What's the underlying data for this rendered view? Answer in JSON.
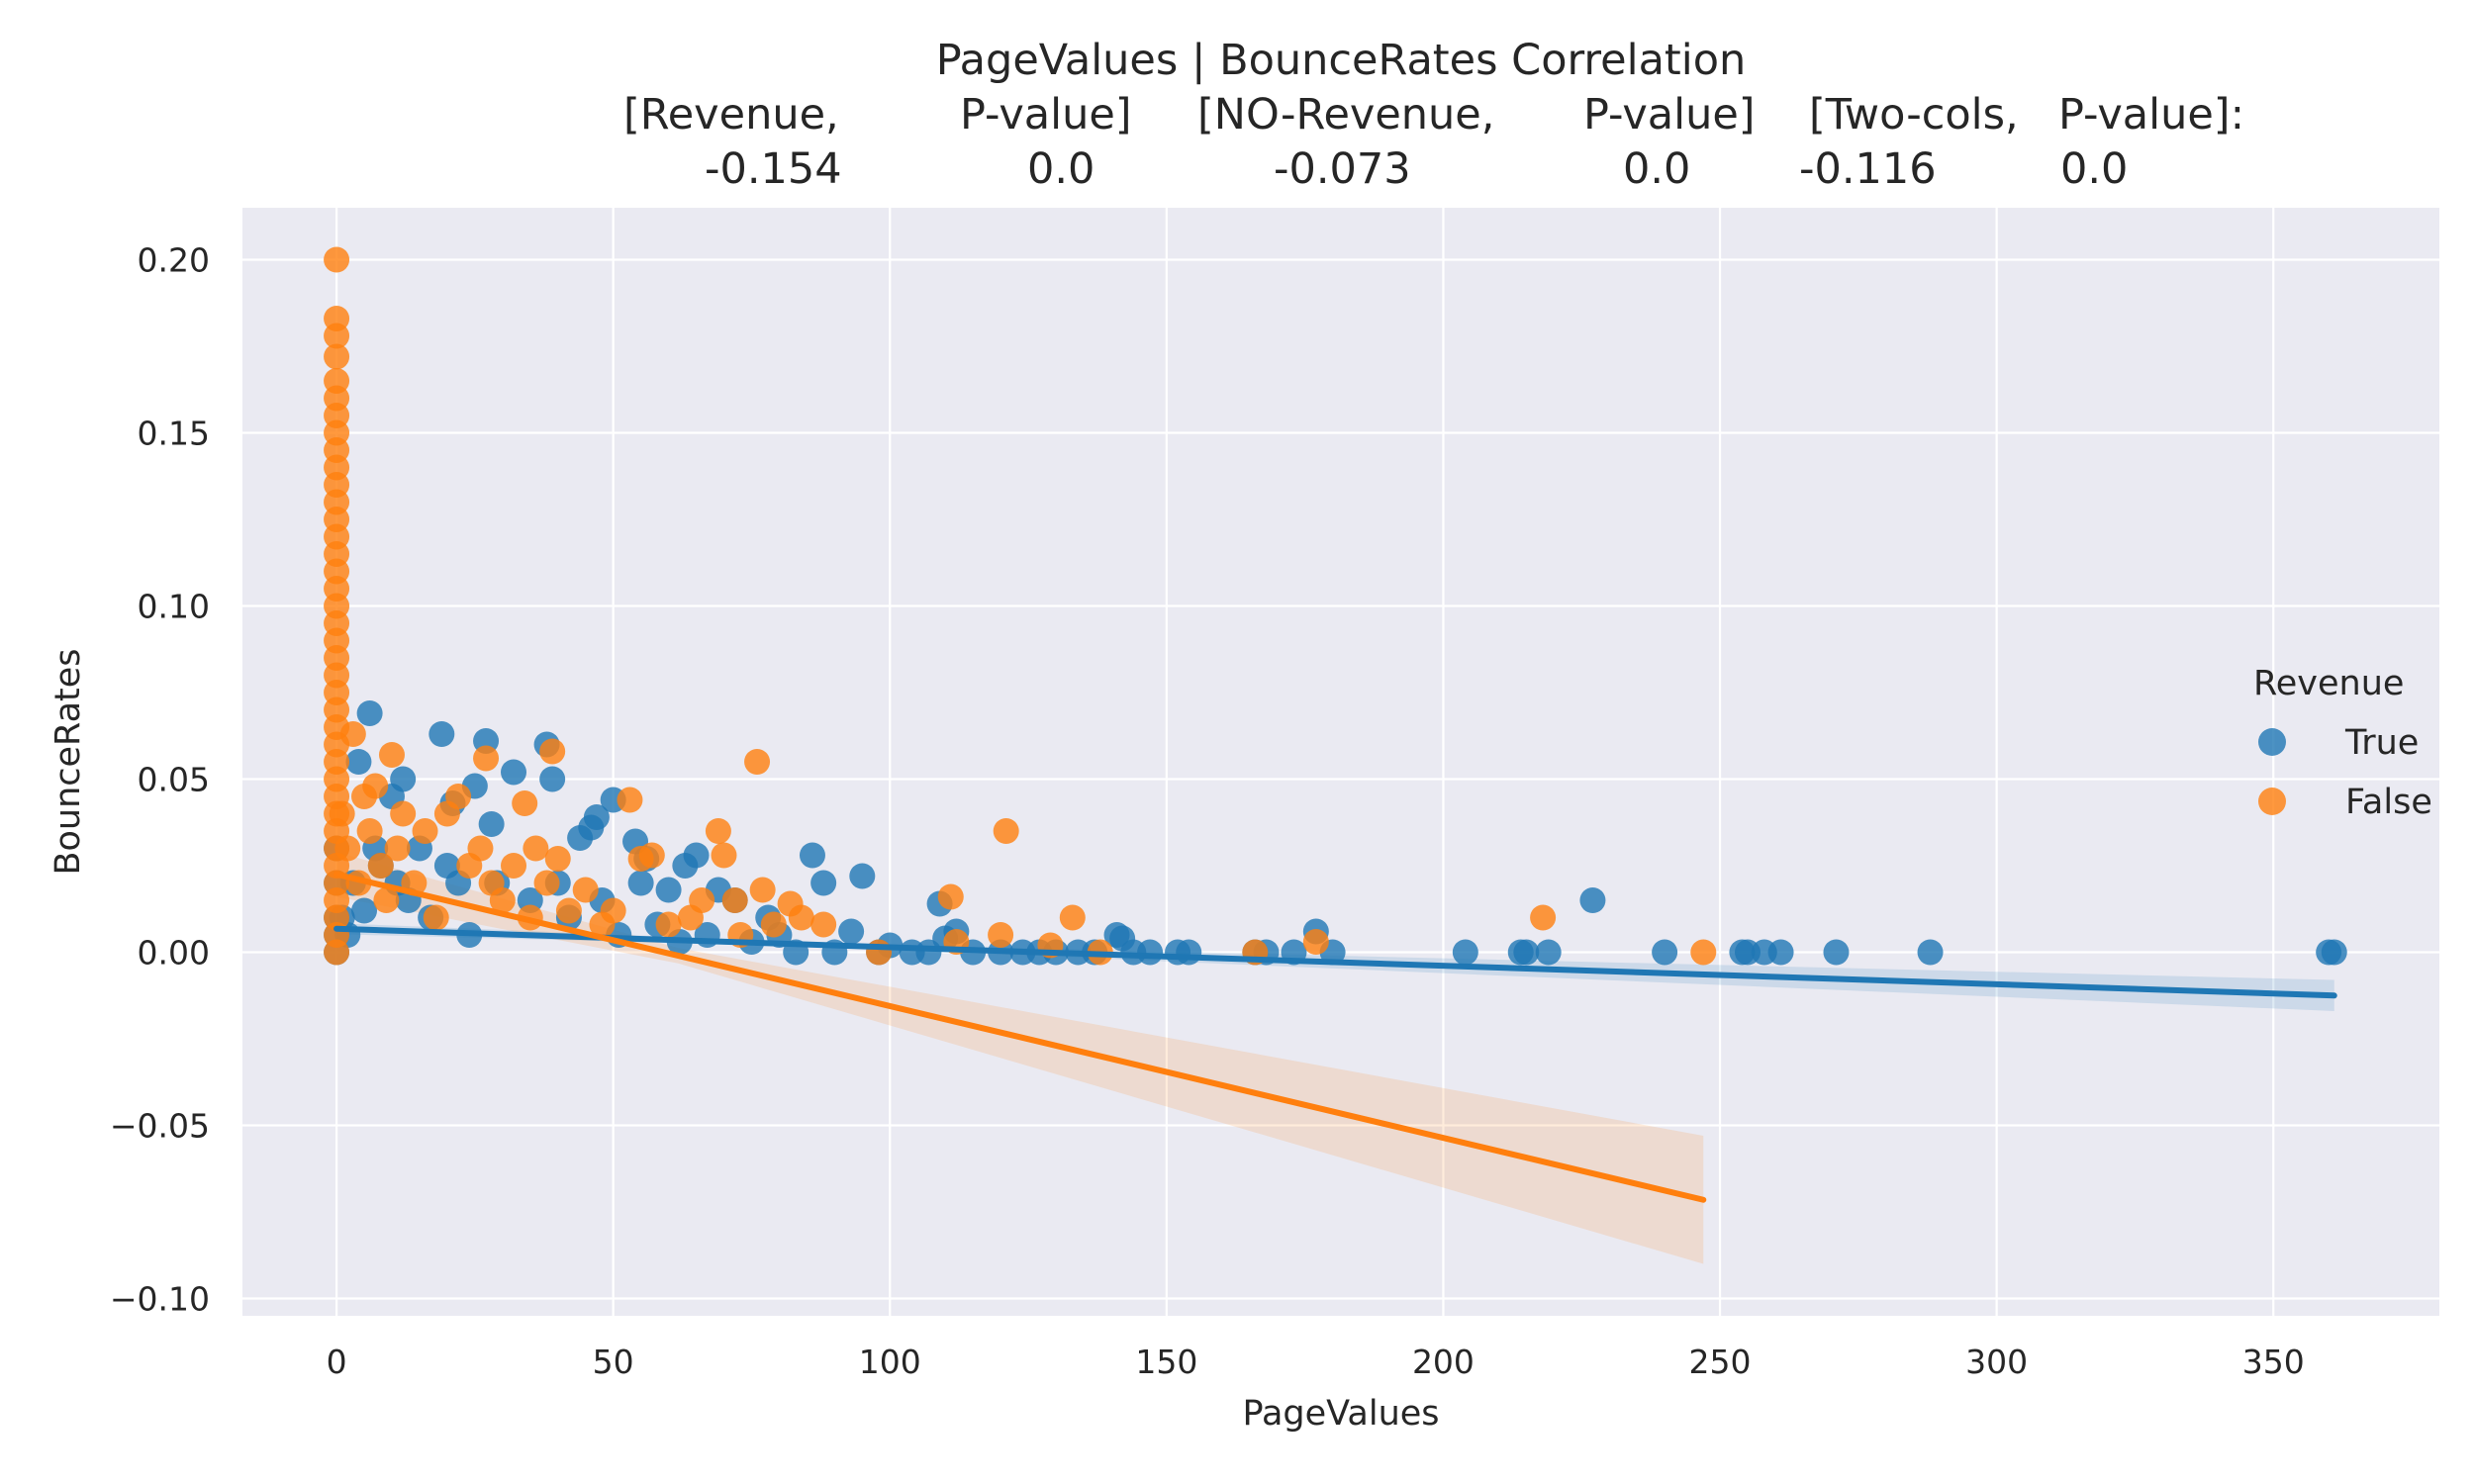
{
  "chart_data": {
    "type": "scatter",
    "title_lines": [
      [
        "PageValues | BounceRates    Correlation"
      ],
      [
        "[Revenue,",
        "P-value]",
        "[NO-Revenue,",
        "P-value]",
        "[Two-cols,",
        "P-value]:"
      ],
      [
        "-0.154",
        "0.0",
        "-0.073",
        "0.0",
        "-0.116",
        "0.0"
      ]
    ],
    "xlabel": "PageValues",
    "ylabel": "BounceRates",
    "xlim": [
      -17,
      380
    ],
    "ylim": [
      -0.105,
      0.215
    ],
    "xticks": [
      0,
      50,
      100,
      150,
      200,
      250,
      300,
      350
    ],
    "xtick_labels": [
      "0",
      "50",
      "100",
      "150",
      "200",
      "250",
      "300",
      "350"
    ],
    "yticks": [
      0.2,
      0.15,
      0.1,
      0.05,
      0.0,
      -0.05,
      -0.1
    ],
    "ytick_labels": [
      "0.20",
      "0.15",
      "0.10",
      "0.05",
      "0.00",
      "−0.05",
      "−0.10"
    ],
    "grid": true,
    "legend": {
      "title": "Revenue",
      "placement": "right"
    },
    "series": [
      {
        "name": "True",
        "color": "#1f77b4",
        "points": [
          [
            0,
            0
          ],
          [
            0,
            0.005
          ],
          [
            0,
            0.01
          ],
          [
            0,
            0.02
          ],
          [
            0,
            0.03
          ],
          [
            1,
            0.01
          ],
          [
            2,
            0.005
          ],
          [
            3,
            0.02
          ],
          [
            4,
            0.055
          ],
          [
            5,
            0.012
          ],
          [
            6,
            0.069
          ],
          [
            7,
            0.03
          ],
          [
            8,
            0.025
          ],
          [
            10,
            0.045
          ],
          [
            11,
            0.02
          ],
          [
            12,
            0.05
          ],
          [
            13,
            0.015
          ],
          [
            15,
            0.03
          ],
          [
            17,
            0.01
          ],
          [
            19,
            0.063
          ],
          [
            20,
            0.025
          ],
          [
            21,
            0.043
          ],
          [
            22,
            0.02
          ],
          [
            24,
            0.005
          ],
          [
            25,
            0.048
          ],
          [
            27,
            0.061
          ],
          [
            28,
            0.037
          ],
          [
            29,
            0.02
          ],
          [
            32,
            0.052
          ],
          [
            35,
            0.015
          ],
          [
            38,
            0.06
          ],
          [
            39,
            0.05
          ],
          [
            40,
            0.02
          ],
          [
            42,
            0.01
          ],
          [
            44,
            0.033
          ],
          [
            46,
            0.036
          ],
          [
            47,
            0.039
          ],
          [
            48,
            0.015
          ],
          [
            50,
            0.044
          ],
          [
            51,
            0.005
          ],
          [
            54,
            0.032
          ],
          [
            55,
            0.02
          ],
          [
            56,
            0.027
          ],
          [
            58,
            0.008
          ],
          [
            60,
            0.018
          ],
          [
            62,
            0.003
          ],
          [
            63,
            0.025
          ],
          [
            65,
            0.028
          ],
          [
            67,
            0.005
          ],
          [
            69,
            0.018
          ],
          [
            72,
            0.015
          ],
          [
            75,
            0.003
          ],
          [
            78,
            0.01
          ],
          [
            80,
            0.005
          ],
          [
            83,
            0
          ],
          [
            86,
            0.028
          ],
          [
            88,
            0.02
          ],
          [
            90,
            0
          ],
          [
            93,
            0.006
          ],
          [
            95,
            0.022
          ],
          [
            98,
            0
          ],
          [
            100,
            0.002
          ],
          [
            104,
            0
          ],
          [
            107,
            0
          ],
          [
            109,
            0.014
          ],
          [
            110,
            0.004
          ],
          [
            112,
            0.006
          ],
          [
            115,
            0
          ],
          [
            120,
            0
          ],
          [
            124,
            0
          ],
          [
            127,
            0
          ],
          [
            130,
            0
          ],
          [
            134,
            0
          ],
          [
            137,
            0
          ],
          [
            141,
            0.005
          ],
          [
            142,
            0.004
          ],
          [
            144,
            0
          ],
          [
            147,
            0
          ],
          [
            152,
            0
          ],
          [
            154,
            0
          ],
          [
            166,
            0
          ],
          [
            168,
            0
          ],
          [
            173,
            0
          ],
          [
            177,
            0.006
          ],
          [
            180,
            0
          ],
          [
            204,
            0
          ],
          [
            214,
            0
          ],
          [
            215,
            0
          ],
          [
            219,
            0
          ],
          [
            227,
            0.015
          ],
          [
            240,
            0
          ],
          [
            254,
            0
          ],
          [
            255,
            0
          ],
          [
            258,
            0
          ],
          [
            261,
            0
          ],
          [
            271,
            0
          ],
          [
            288,
            0
          ],
          [
            360,
            0
          ],
          [
            361,
            0
          ]
        ],
        "fit": {
          "x": [
            0,
            361
          ],
          "y": [
            0.0068,
            -0.0125
          ],
          "ci_halfwidth_end": 0.0045
        }
      },
      {
        "name": "False",
        "color": "#ff7f0e",
        "points": [
          [
            0,
            0.2
          ],
          [
            0,
            0.183
          ],
          [
            0,
            0.178
          ],
          [
            0,
            0.172
          ],
          [
            0,
            0.165
          ],
          [
            0,
            0.16
          ],
          [
            0,
            0.155
          ],
          [
            0,
            0.15
          ],
          [
            0,
            0.145
          ],
          [
            0,
            0.14
          ],
          [
            0,
            0.135
          ],
          [
            0,
            0.13
          ],
          [
            0,
            0.125
          ],
          [
            0,
            0.12
          ],
          [
            0,
            0.115
          ],
          [
            0,
            0.11
          ],
          [
            0,
            0.105
          ],
          [
            0,
            0.1
          ],
          [
            0,
            0.095
          ],
          [
            0,
            0.09
          ],
          [
            0,
            0.085
          ],
          [
            0,
            0.08
          ],
          [
            0,
            0.075
          ],
          [
            0,
            0.07
          ],
          [
            0,
            0.065
          ],
          [
            0,
            0.06
          ],
          [
            0,
            0.055
          ],
          [
            0,
            0.05
          ],
          [
            0,
            0.045
          ],
          [
            0,
            0.04
          ],
          [
            0,
            0.035
          ],
          [
            0,
            0.03
          ],
          [
            0,
            0.025
          ],
          [
            0,
            0.02
          ],
          [
            0,
            0.015
          ],
          [
            0,
            0.01
          ],
          [
            0,
            0.005
          ],
          [
            0,
            0
          ],
          [
            1,
            0.04
          ],
          [
            2,
            0.03
          ],
          [
            3,
            0.063
          ],
          [
            4,
            0.02
          ],
          [
            5,
            0.045
          ],
          [
            6,
            0.035
          ],
          [
            7,
            0.048
          ],
          [
            8,
            0.025
          ],
          [
            9,
            0.015
          ],
          [
            10,
            0.057
          ],
          [
            11,
            0.03
          ],
          [
            12,
            0.04
          ],
          [
            14,
            0.02
          ],
          [
            16,
            0.035
          ],
          [
            18,
            0.01
          ],
          [
            20,
            0.04
          ],
          [
            22,
            0.045
          ],
          [
            24,
            0.025
          ],
          [
            26,
            0.03
          ],
          [
            27,
            0.056
          ],
          [
            28,
            0.02
          ],
          [
            30,
            0.015
          ],
          [
            32,
            0.025
          ],
          [
            34,
            0.043
          ],
          [
            35,
            0.01
          ],
          [
            36,
            0.03
          ],
          [
            38,
            0.02
          ],
          [
            39,
            0.058
          ],
          [
            40,
            0.027
          ],
          [
            42,
            0.012
          ],
          [
            45,
            0.018
          ],
          [
            48,
            0.008
          ],
          [
            50,
            0.012
          ],
          [
            53,
            0.044
          ],
          [
            55,
            0.027
          ],
          [
            57,
            0.028
          ],
          [
            60,
            0.008
          ],
          [
            64,
            0.01
          ],
          [
            66,
            0.015
          ],
          [
            69,
            0.035
          ],
          [
            70,
            0.028
          ],
          [
            72,
            0.015
          ],
          [
            73,
            0.005
          ],
          [
            76,
            0.055
          ],
          [
            77,
            0.018
          ],
          [
            79,
            0.008
          ],
          [
            82,
            0.014
          ],
          [
            84,
            0.01
          ],
          [
            88,
            0.008
          ],
          [
            98,
            0
          ],
          [
            111,
            0.016
          ],
          [
            112,
            0.003
          ],
          [
            120,
            0.005
          ],
          [
            121,
            0.035
          ],
          [
            129,
            0.002
          ],
          [
            133,
            0.01
          ],
          [
            138,
            0
          ],
          [
            166,
            0
          ],
          [
            177,
            0.003
          ],
          [
            218,
            0.01
          ],
          [
            247,
            0
          ]
        ],
        "fit": {
          "x": [
            0,
            247
          ],
          "y": [
            0.0225,
            -0.0715
          ],
          "ci_halfwidth_end": 0.0185
        }
      }
    ]
  }
}
